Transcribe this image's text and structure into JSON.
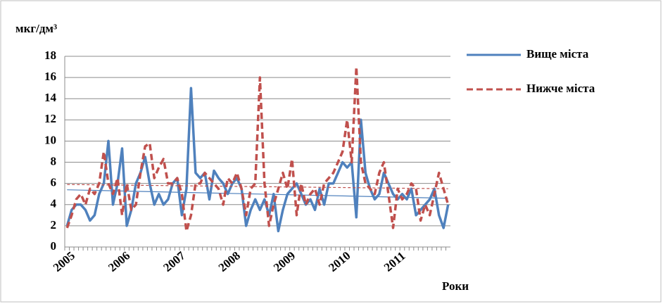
{
  "chart_data": {
    "type": "line",
    "y_label": "мкг/дм³",
    "x_label": "Роки",
    "categories": [
      "2005",
      null,
      null,
      null,
      null,
      null,
      null,
      null,
      null,
      null,
      null,
      null,
      "2006",
      null,
      null,
      null,
      null,
      null,
      null,
      null,
      null,
      null,
      null,
      null,
      "2007",
      null,
      null,
      null,
      null,
      null,
      null,
      null,
      null,
      null,
      null,
      null,
      "2008",
      null,
      null,
      null,
      null,
      null,
      null,
      null,
      null,
      null,
      null,
      null,
      "2009",
      null,
      null,
      null,
      null,
      null,
      null,
      null,
      null,
      null,
      null,
      null,
      "2010",
      null,
      null,
      null,
      null,
      null,
      null,
      null,
      null,
      null,
      null,
      null,
      "2011",
      null,
      null,
      null,
      null,
      null,
      null,
      null,
      null,
      null,
      null,
      null
    ],
    "series": [
      {
        "name": "Вище міста",
        "color": "#4f81bd",
        "dash": false,
        "trend": [
          5.4,
          4.6
        ],
        "values": [
          2,
          3.5,
          4,
          4,
          3.5,
          2.5,
          3,
          5,
          6,
          10,
          4,
          6,
          9.3,
          2,
          3.5,
          6,
          7,
          8.5,
          6,
          4,
          5,
          4,
          4.5,
          6,
          6.5,
          3,
          5.5,
          15,
          7,
          6.5,
          7,
          4.5,
          7.2,
          6.5,
          6,
          5,
          6,
          6.5,
          5.5,
          2,
          3.5,
          4.5,
          3.5,
          4.5,
          3,
          5,
          1.5,
          3.5,
          5,
          5.5,
          6,
          5,
          4,
          4.5,
          3.5,
          5.5,
          4,
          6,
          6,
          7,
          8,
          7.5,
          8,
          2.8,
          12,
          7,
          5.5,
          4.5,
          5,
          7,
          6,
          5,
          4.5,
          5,
          4.5,
          5.5,
          3,
          3.5,
          4,
          4.5,
          5.5,
          3,
          1.8,
          4
        ]
      },
      {
        "name": "Нижче міста",
        "color": "#c0504d",
        "dash": true,
        "trend": [
          5.9,
          5.5
        ],
        "values": [
          1.8,
          3,
          4.5,
          5,
          4,
          5.5,
          5,
          6,
          9,
          6,
          5,
          6.5,
          3,
          6,
          3.5,
          4,
          7,
          9.5,
          9.8,
          6.5,
          7.5,
          8.3,
          6,
          6,
          6.5,
          5,
          1.5,
          3,
          6,
          6,
          7,
          6.5,
          6,
          5.5,
          4,
          6.5,
          6,
          7,
          5.5,
          3,
          5.5,
          6,
          16,
          6,
          2,
          4,
          5.5,
          7,
          5.5,
          8.3,
          3,
          6,
          4,
          5,
          5.5,
          4,
          6,
          6.5,
          7,
          8,
          9,
          12,
          8,
          17,
          8,
          6,
          5.5,
          5,
          7,
          8,
          5,
          1.8,
          5.5,
          4.5,
          5,
          6,
          5.5,
          2.5,
          4,
          3,
          5,
          7,
          5.5,
          4
        ]
      }
    ],
    "ylim": [
      0,
      18
    ],
    "yticks": [
      0,
      2,
      4,
      6,
      8,
      10,
      12,
      14,
      16,
      18
    ],
    "grid": true
  }
}
